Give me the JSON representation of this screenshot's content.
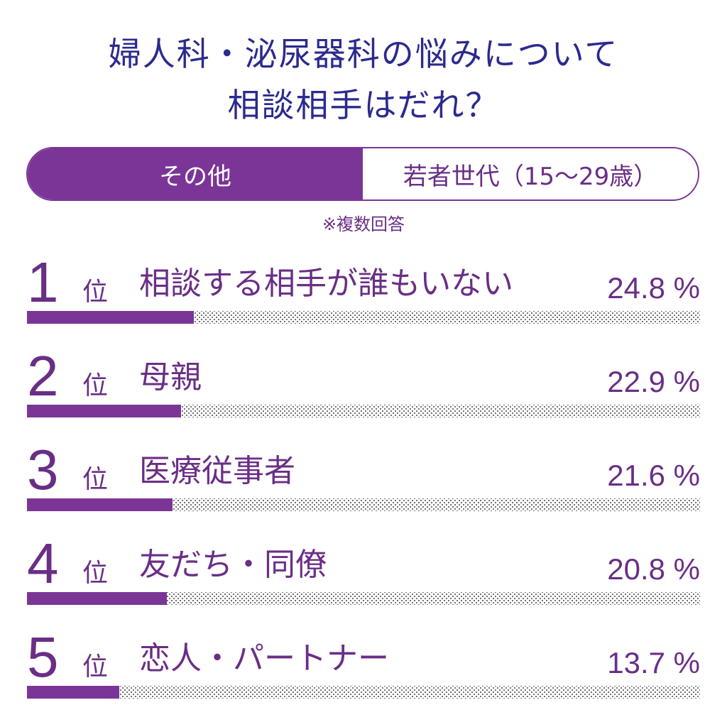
{
  "title_line1": "婦人科・泌尿器科の悩みについて",
  "title_line2": "相談相手はだれ？",
  "tabs": [
    {
      "label": "その他",
      "active": true
    },
    {
      "label": "若者世代（15〜29歳）",
      "active": false
    }
  ],
  "note": "※複数回答",
  "rank_suffix": "位",
  "colors": {
    "accent": "#7b3597",
    "title": "#2b2a8e"
  },
  "chart_data": {
    "type": "bar",
    "orientation": "horizontal",
    "title": "婦人科・泌尿器科の悩みについて 相談相手はだれ？",
    "categories": [
      "相談する相手が誰もいない",
      "母親",
      "医療従事者",
      "友だち・同僚",
      "恋人・パートナー"
    ],
    "ranks": [
      "1",
      "2",
      "3",
      "4",
      "5"
    ],
    "values": [
      24.8,
      22.9,
      21.6,
      20.8,
      13.7
    ],
    "value_labels": [
      "24.8 %",
      "22.9 %",
      "21.6 %",
      "20.8 %",
      "13.7 %"
    ],
    "unit": "%",
    "xlim": [
      0,
      100
    ],
    "grid": false
  }
}
